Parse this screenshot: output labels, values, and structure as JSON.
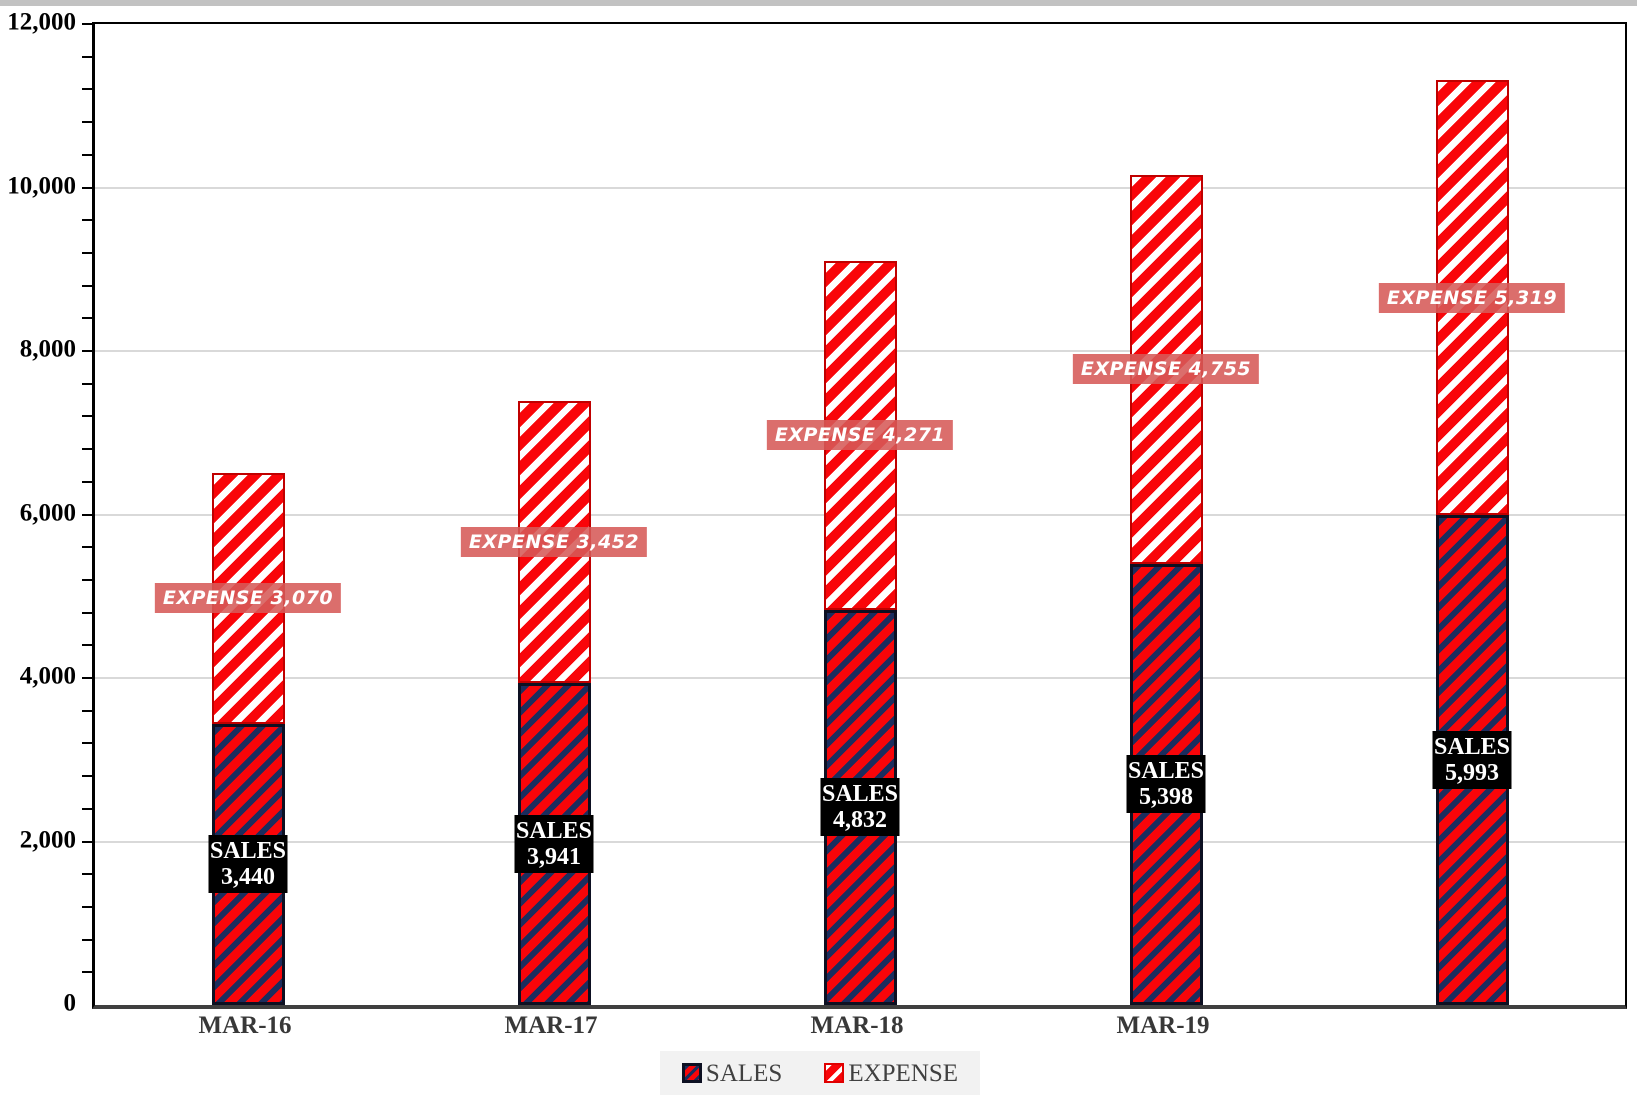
{
  "chart_data": {
    "type": "bar",
    "stacked": true,
    "categories": [
      "MAR-16",
      "MAR-17",
      "MAR-18",
      "MAR-19",
      ""
    ],
    "series": [
      {
        "name": "SALES",
        "values": [
          3440,
          3941,
          4832,
          5398,
          5993
        ],
        "value_labels": [
          "3,440",
          "3,941",
          "4,832",
          "5,398",
          "5,993"
        ]
      },
      {
        "name": "EXPENSE",
        "values": [
          3070,
          3452,
          4271,
          4755,
          5319
        ],
        "value_labels": [
          "3,070",
          "3,452",
          "4,271",
          "4,755",
          "5,319"
        ]
      }
    ],
    "ylim": [
      0,
      12000
    ],
    "y_major_step": 2000,
    "y_minor_step": 400,
    "y_tick_labels": [
      "0",
      "2,000",
      "4,000",
      "6,000",
      "8,000",
      "10,000",
      "12,000"
    ],
    "grid": "horizontal-major-gridlines",
    "legend_position": "bottom-center",
    "colors": {
      "bar_red": "#f90509",
      "sales_stripe_navy": "#1b2d5e",
      "sales_border": "#0d1022",
      "expense_stripe_white": "#ffffff",
      "expense_border": "#c00000",
      "sales_label_bg": "#000000",
      "sales_label_text": "#ffffff",
      "expense_label_bg": "#d65a58",
      "expense_label_text": "#ffffff",
      "gridline": "#d9d9d9",
      "axis_line": "#000000",
      "x_axis_line": "#3f3f3f",
      "category_label_color": "#383838",
      "legend_text_color": "#404040",
      "legend_bg": "#f2f2f2"
    }
  }
}
